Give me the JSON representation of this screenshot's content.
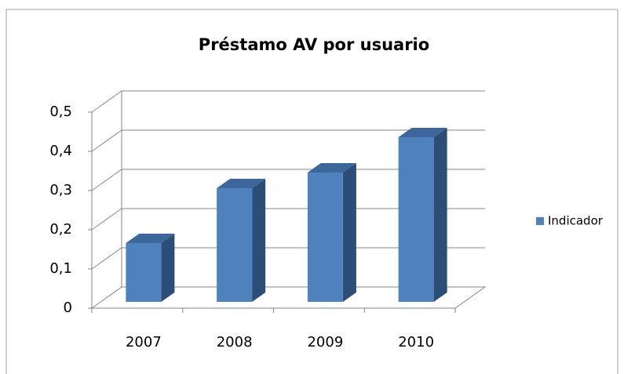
{
  "chart_data": {
    "type": "bar3d",
    "title": "Préstamo AV por usuario",
    "categories": [
      "2007",
      "2008",
      "2009",
      "2010"
    ],
    "series": [
      {
        "name": "Indicador",
        "color": "#4f81bd",
        "values": [
          0.15,
          0.29,
          0.33,
          0.42
        ]
      }
    ],
    "ylim": [
      0,
      0.5
    ],
    "yticks": [
      0,
      {
        "value": 0.1,
        "label": "0,1"
      },
      {
        "value": 0.2,
        "label": "0,2"
      },
      {
        "value": 0.3,
        "label": "0,3"
      },
      {
        "value": 0.4,
        "label": "0,4"
      },
      {
        "value": 0.5,
        "label": "0,5"
      }
    ],
    "grid": true,
    "legend": "right"
  }
}
